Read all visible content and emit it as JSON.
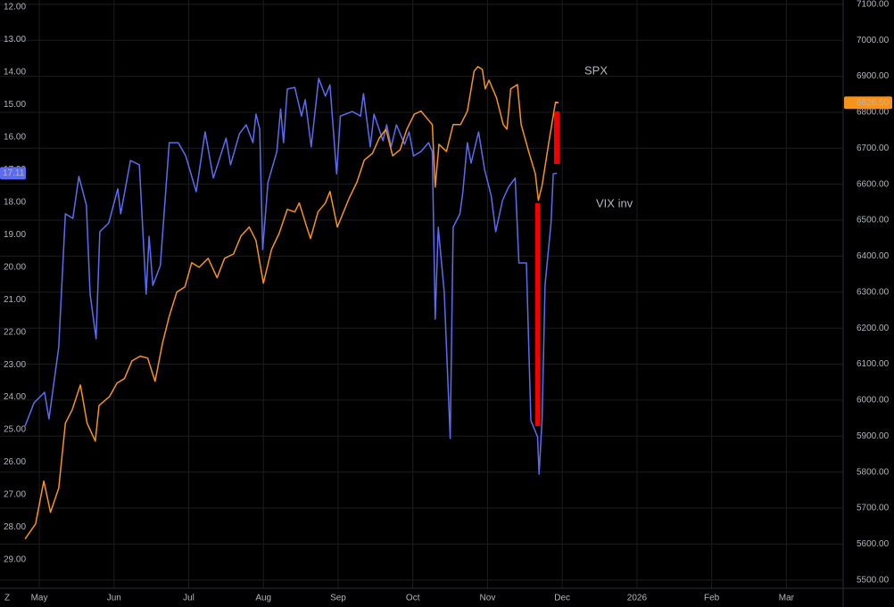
{
  "chart_data": {
    "type": "line",
    "corner_label": "Z",
    "annotations": [
      {
        "text": "SPX",
        "color": "#f7931a"
      },
      {
        "text": "VIX inv",
        "color": "#f7931a"
      }
    ],
    "xlim": [
      4.474,
      15.76
    ],
    "xticks": [
      {
        "value": 5,
        "label": "May"
      },
      {
        "value": 6,
        "label": "Jun"
      },
      {
        "value": 7,
        "label": "Jul"
      },
      {
        "value": 8,
        "label": "Aug"
      },
      {
        "value": 9,
        "label": "Sep"
      },
      {
        "value": 10,
        "label": "Oct"
      },
      {
        "value": 11,
        "label": "Nov"
      },
      {
        "value": 12,
        "label": "Dec"
      },
      {
        "value": 13,
        "label": "2026"
      },
      {
        "value": 14,
        "label": "Feb"
      },
      {
        "value": 15,
        "label": "Mar"
      }
    ],
    "ylim": [
      11.78,
      29.88
    ],
    "y_inverted": true,
    "yticks": [
      {
        "value": 12,
        "label": "12.00"
      },
      {
        "value": 13,
        "label": "13.00"
      },
      {
        "value": 14,
        "label": "14.00"
      },
      {
        "value": 15,
        "label": "15.00"
      },
      {
        "value": 16,
        "label": "16.00"
      },
      {
        "value": 17,
        "label": "17.00"
      },
      {
        "value": 18,
        "label": "18.00"
      },
      {
        "value": 19,
        "label": "19.00"
      },
      {
        "value": 20,
        "label": "20.00"
      },
      {
        "value": 21,
        "label": "21.00"
      },
      {
        "value": 22,
        "label": "22.00"
      },
      {
        "value": 23,
        "label": "23.00"
      },
      {
        "value": 24,
        "label": "24.00"
      },
      {
        "value": 25,
        "label": "25.00"
      },
      {
        "value": 26,
        "label": "26.00"
      },
      {
        "value": 27,
        "label": "27.00"
      },
      {
        "value": 28,
        "label": "28.00"
      },
      {
        "value": 29,
        "label": "29.00"
      }
    ],
    "y2lim": [
      5477,
      7112
    ],
    "y2ticks": [
      {
        "value": 5500,
        "label": "5500.00"
      },
      {
        "value": 5600,
        "label": "5600.00"
      },
      {
        "value": 5700,
        "label": "5700.00"
      },
      {
        "value": 5800,
        "label": "5800.00"
      },
      {
        "value": 5900,
        "label": "5900.00"
      },
      {
        "value": 6000,
        "label": "6000.00"
      },
      {
        "value": 6100,
        "label": "6100.00"
      },
      {
        "value": 6200,
        "label": "6200.00"
      },
      {
        "value": 6300,
        "label": "6300.00"
      },
      {
        "value": 6400,
        "label": "6400.00"
      },
      {
        "value": 6500,
        "label": "6500.00"
      },
      {
        "value": 6600,
        "label": "6600.00"
      },
      {
        "value": 6700,
        "label": "6700.00"
      },
      {
        "value": 6800,
        "label": "6800.00"
      },
      {
        "value": 6900,
        "label": "6900.00"
      },
      {
        "value": 7000,
        "label": "7000.00"
      },
      {
        "value": 7100,
        "label": "7100.00"
      }
    ],
    "grid": true,
    "series": [
      {
        "color": "#5c6cf2",
        "axis": "y",
        "last_value_label": "17.11",
        "x": [
          4.81,
          4.93,
          5.07,
          5.13,
          5.26,
          5.35,
          5.45,
          5.53,
          5.63,
          5.68,
          5.76,
          5.81,
          5.93,
          6.05,
          6.09,
          6.22,
          6.34,
          6.43,
          6.47,
          6.52,
          6.62,
          6.74,
          6.86,
          6.96,
          7.1,
          7.22,
          7.33,
          7.5,
          7.56,
          7.68,
          7.77,
          7.86,
          7.9,
          7.95,
          7.99,
          8.06,
          8.18,
          8.23,
          8.27,
          8.32,
          8.42,
          8.51,
          8.56,
          8.64,
          8.74,
          8.83,
          8.89,
          8.98,
          9.03,
          9.19,
          9.3,
          9.34,
          9.43,
          9.48,
          9.6,
          9.65,
          9.71,
          9.78,
          9.89,
          9.95,
          10.01,
          10.11,
          10.21,
          10.26,
          10.3,
          10.34,
          10.42,
          10.5,
          10.54,
          10.63,
          10.67,
          10.73,
          10.78,
          10.88,
          10.96,
          11.05,
          11.11,
          11.2,
          11.28,
          11.37,
          11.42,
          11.52,
          11.58,
          11.67,
          11.69,
          11.73,
          11.77,
          11.85,
          11.88,
          11.93
        ],
        "values": [
          24.89,
          24.17,
          23.85,
          24.67,
          22.47,
          18.36,
          18.5,
          17.21,
          18.09,
          20.83,
          22.2,
          18.91,
          18.64,
          17.59,
          18.36,
          16.72,
          16.85,
          20.83,
          19.05,
          20.56,
          19.95,
          16.17,
          16.17,
          16.58,
          17.68,
          15.84,
          17.26,
          16.03,
          16.85,
          15.89,
          15.62,
          16.17,
          15.29,
          15.76,
          19.46,
          17.4,
          16.44,
          15.13,
          16.17,
          14.52,
          14.47,
          15.35,
          14.85,
          16.3,
          14.19,
          14.74,
          14.39,
          17.13,
          15.35,
          15.21,
          15.35,
          14.66,
          16.3,
          15.29,
          16.11,
          15.62,
          16.3,
          15.62,
          16.22,
          15.84,
          16.58,
          16.44,
          16.17,
          16.44,
          21.6,
          18.77,
          20.77,
          25.27,
          18.77,
          18.36,
          17.68,
          16.17,
          16.8,
          15.84,
          16.99,
          17.81,
          18.91,
          17.95,
          17.54,
          17.26,
          19.87,
          19.87,
          24.72,
          25.22,
          26.37,
          24.67,
          20.55,
          18.64,
          17.13,
          17.11
        ]
      },
      {
        "color": "#f7931a",
        "axis": "y2",
        "last_value_label": "6826.50",
        "x": [
          4.81,
          4.95,
          5.06,
          5.15,
          5.26,
          5.35,
          5.44,
          5.55,
          5.64,
          5.75,
          5.8,
          5.94,
          6.04,
          6.14,
          6.24,
          6.35,
          6.45,
          6.55,
          6.65,
          6.74,
          6.84,
          6.95,
          7.04,
          7.14,
          7.26,
          7.38,
          7.48,
          7.6,
          7.7,
          7.81,
          7.9,
          8.0,
          8.11,
          8.21,
          8.32,
          8.42,
          8.48,
          8.58,
          8.63,
          8.73,
          8.83,
          8.89,
          8.99,
          9.15,
          9.25,
          9.35,
          9.46,
          9.55,
          9.64,
          9.73,
          9.83,
          9.92,
          10.02,
          10.11,
          10.21,
          10.26,
          10.3,
          10.35,
          10.45,
          10.54,
          10.64,
          10.73,
          10.82,
          10.87,
          10.93,
          10.97,
          11.02,
          11.12,
          11.21,
          11.26,
          11.31,
          11.4,
          11.45,
          11.55,
          11.64,
          11.68,
          11.73,
          11.82,
          11.91,
          11.95
        ],
        "values": [
          5614,
          5656,
          5775,
          5688,
          5755,
          5936,
          5973,
          6042,
          5936,
          5886,
          5985,
          6010,
          6047,
          6060,
          6109,
          6122,
          6117,
          6052,
          6159,
          6233,
          6300,
          6315,
          6382,
          6369,
          6394,
          6340,
          6394,
          6406,
          6456,
          6481,
          6444,
          6325,
          6419,
          6463,
          6530,
          6523,
          6548,
          6481,
          6449,
          6523,
          6548,
          6580,
          6481,
          6562,
          6605,
          6667,
          6686,
          6728,
          6753,
          6679,
          6696,
          6753,
          6795,
          6803,
          6778,
          6766,
          6592,
          6711,
          6691,
          6766,
          6766,
          6803,
          6914,
          6927,
          6919,
          6865,
          6889,
          6840,
          6766,
          6753,
          6865,
          6877,
          6766,
          6691,
          6629,
          6555,
          6597,
          6716,
          6828,
          6826.5
        ]
      }
    ]
  }
}
